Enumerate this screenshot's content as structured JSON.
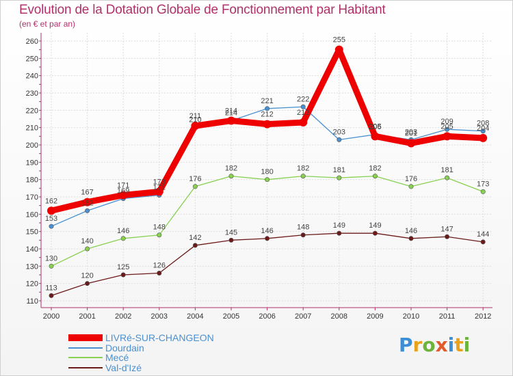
{
  "title": "Evolution de la Dotation Globale de Fonctionnement par Habitant",
  "subtitle": "(en € et par an)",
  "logo": {
    "text": "Proxiti",
    "letter_colors": [
      "#3a8fd6",
      "#e8a21c",
      "#6bb33a",
      "#e05a2b",
      "#3a8fd6",
      "#e8a21c",
      "#6bb33a"
    ]
  },
  "chart_data": {
    "type": "line",
    "title": "Evolution de la Dotation Globale de Fonctionnement par Habitant",
    "subtitle": "(en € et par an)",
    "xlabel": "",
    "ylabel": "",
    "ylim": [
      110,
      260
    ],
    "yticks": [
      "110",
      "120",
      "130",
      "140",
      "150",
      "160",
      "170",
      "180",
      "190",
      "200",
      "210",
      "220",
      "230",
      "240",
      "250",
      "260"
    ],
    "x": [
      "2000",
      "2001",
      "2002",
      "2003",
      "2004",
      "2005",
      "2006",
      "2007",
      "2008",
      "2009",
      "2010",
      "2011",
      "2012"
    ],
    "grid": true,
    "legend_position": "bottom-left",
    "series": [
      {
        "name": "LIVRé-SUR-CHANGEON",
        "color": "#ee0000",
        "highlight": true,
        "values": [
          162,
          167,
          171,
          173,
          211,
          214,
          212,
          213,
          255,
          205,
          201,
          205,
          204
        ],
        "labels": [
          "162",
          "167",
          "171",
          "173",
          "211",
          "214",
          "212",
          "213",
          "255",
          "205",
          "201",
          "205",
          "204"
        ]
      },
      {
        "name": "Dourdain",
        "color": "#4a90d0",
        "highlight": false,
        "values": [
          153,
          162,
          169,
          171,
          210,
          214,
          221,
          222,
          203,
          206,
          203,
          209,
          208
        ],
        "labels": [
          "153",
          "162",
          "169",
          "171",
          "210",
          "214",
          "221",
          "222",
          "203",
          "206",
          "203",
          "209",
          "208"
        ]
      },
      {
        "name": "Mecé",
        "color": "#88d050",
        "highlight": false,
        "values": [
          130,
          140,
          146,
          148,
          176,
          182,
          180,
          182,
          181,
          182,
          176,
          181,
          173
        ],
        "labels": [
          "130",
          "140",
          "146",
          "148",
          "176",
          "182",
          "180",
          "182",
          "181",
          "182",
          "176",
          "181",
          "173"
        ]
      },
      {
        "name": "Val-d'Izé",
        "color": "#6b1a1a",
        "highlight": false,
        "values": [
          113,
          120,
          125,
          126,
          142,
          145,
          146,
          148,
          149,
          149,
          146,
          147,
          144
        ],
        "labels": [
          "113",
          "120",
          "125",
          "126",
          "142",
          "145",
          "146",
          "148",
          "149",
          "149",
          "146",
          "147",
          "144"
        ]
      }
    ]
  }
}
